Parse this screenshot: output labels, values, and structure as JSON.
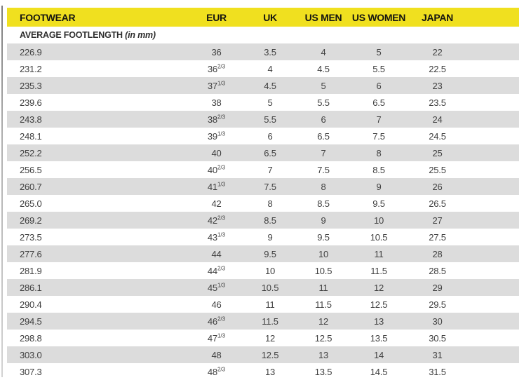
{
  "colors": {
    "header_yellow": "#f0e01f",
    "row_gray": "#dcdcdc",
    "text_dark": "#3f3f3f"
  },
  "header": {
    "columns": [
      "FOOTWEAR",
      "EUR",
      "UK",
      "US MEN",
      "US WOMEN",
      "JAPAN"
    ]
  },
  "subheader": {
    "label": "AVERAGE FOOTLENGTH",
    "unit": "(in mm)"
  },
  "table": {
    "rows": [
      {
        "footlength": "226.9",
        "eur": "36",
        "eur_sup": "",
        "uk": "3.5",
        "us_men": "4",
        "us_women": "5",
        "japan": "22"
      },
      {
        "footlength": "231.2",
        "eur": "36",
        "eur_sup": "2/3",
        "uk": "4",
        "us_men": "4.5",
        "us_women": "5.5",
        "japan": "22.5"
      },
      {
        "footlength": "235.3",
        "eur": "37",
        "eur_sup": "1/3",
        "uk": "4.5",
        "us_men": "5",
        "us_women": "6",
        "japan": "23"
      },
      {
        "footlength": "239.6",
        "eur": "38",
        "eur_sup": "",
        "uk": "5",
        "us_men": "5.5",
        "us_women": "6.5",
        "japan": "23.5"
      },
      {
        "footlength": "243.8",
        "eur": "38",
        "eur_sup": "2/3",
        "uk": "5.5",
        "us_men": "6",
        "us_women": "7",
        "japan": "24"
      },
      {
        "footlength": "248.1",
        "eur": "39",
        "eur_sup": "1/3",
        "uk": "6",
        "us_men": "6.5",
        "us_women": "7.5",
        "japan": "24.5"
      },
      {
        "footlength": "252.2",
        "eur": "40",
        "eur_sup": "",
        "uk": "6.5",
        "us_men": "7",
        "us_women": "8",
        "japan": "25"
      },
      {
        "footlength": "256.5",
        "eur": "40",
        "eur_sup": "2/3",
        "uk": "7",
        "us_men": "7.5",
        "us_women": "8.5",
        "japan": "25.5"
      },
      {
        "footlength": "260.7",
        "eur": "41",
        "eur_sup": "1/3",
        "uk": "7.5",
        "us_men": "8",
        "us_women": "9",
        "japan": "26"
      },
      {
        "footlength": "265.0",
        "eur": "42",
        "eur_sup": "",
        "uk": "8",
        "us_men": "8.5",
        "us_women": "9.5",
        "japan": "26.5"
      },
      {
        "footlength": "269.2",
        "eur": "42",
        "eur_sup": "2/3",
        "uk": "8.5",
        "us_men": "9",
        "us_women": "10",
        "japan": "27"
      },
      {
        "footlength": "273.5",
        "eur": "43",
        "eur_sup": "1/3",
        "uk": "9",
        "us_men": "9.5",
        "us_women": "10.5",
        "japan": "27.5"
      },
      {
        "footlength": "277.6",
        "eur": "44",
        "eur_sup": "",
        "uk": "9.5",
        "us_men": "10",
        "us_women": "11",
        "japan": "28"
      },
      {
        "footlength": "281.9",
        "eur": "44",
        "eur_sup": "2/3",
        "uk": "10",
        "us_men": "10.5",
        "us_women": "11.5",
        "japan": "28.5"
      },
      {
        "footlength": "286.1",
        "eur": "45",
        "eur_sup": "1/3",
        "uk": "10.5",
        "us_men": "11",
        "us_women": "12",
        "japan": "29"
      },
      {
        "footlength": "290.4",
        "eur": "46",
        "eur_sup": "",
        "uk": "11",
        "us_men": "11.5",
        "us_women": "12.5",
        "japan": "29.5"
      },
      {
        "footlength": "294.5",
        "eur": "46",
        "eur_sup": "2/3",
        "uk": "11.5",
        "us_men": "12",
        "us_women": "13",
        "japan": "30"
      },
      {
        "footlength": "298.8",
        "eur": "47",
        "eur_sup": "1/3",
        "uk": "12",
        "us_men": "12.5",
        "us_women": "13.5",
        "japan": "30.5"
      },
      {
        "footlength": "303.0",
        "eur": "48",
        "eur_sup": "",
        "uk": "12.5",
        "us_men": "13",
        "us_women": "14",
        "japan": "31"
      },
      {
        "footlength": "307.3",
        "eur": "48",
        "eur_sup": "2/3",
        "uk": "13",
        "us_men": "13.5",
        "us_women": "14.5",
        "japan": "31.5"
      }
    ]
  }
}
